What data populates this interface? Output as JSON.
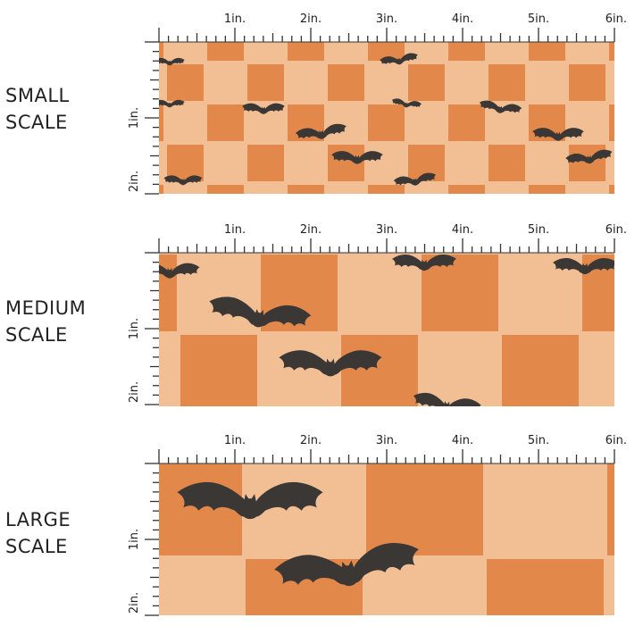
{
  "colors": {
    "dark_orange": "#E2884A",
    "light_peach": "#F2BF95",
    "bat": "#3A3735",
    "ruler": "#333333"
  },
  "ruler": {
    "horizontal_labels": [
      "1in.",
      "2in.",
      "3in.",
      "4in.",
      "5in.",
      "6in."
    ],
    "vertical_labels": [
      "1in.",
      "2in."
    ]
  },
  "panels": [
    {
      "name": "small",
      "line1": "SMALL",
      "line2": "SCALE"
    },
    {
      "name": "medium",
      "line1": "MEDIUM",
      "line2": "SCALE"
    },
    {
      "name": "large",
      "line1": "LARGE",
      "line2": "SCALE"
    }
  ]
}
